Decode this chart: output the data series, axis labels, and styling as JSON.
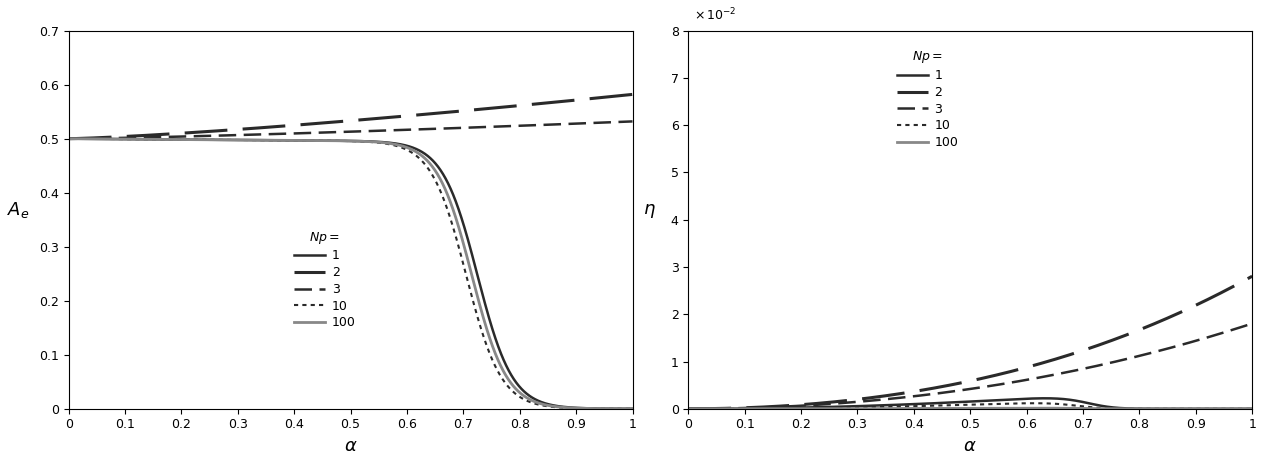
{
  "Np_values": [
    1,
    2,
    3,
    10,
    100
  ],
  "line_styles": [
    {
      "lw": 1.8,
      "color": "#2a2a2a",
      "dashes": [
        6,
        0
      ]
    },
    {
      "lw": 2.2,
      "color": "#2a2a2a",
      "dashes": [
        14,
        5
      ]
    },
    {
      "lw": 1.8,
      "color": "#2a2a2a",
      "dashes": [
        7,
        3
      ]
    },
    {
      "lw": 1.5,
      "color": "#2a2a2a",
      "dashes": [
        2,
        2
      ]
    },
    {
      "lw": 2.0,
      "color": "#888888",
      "dashes": [
        6,
        0
      ]
    }
  ],
  "ylabel_left": "$A_e$",
  "ylabel_right": "$\\eta$",
  "xlabel": "$\\alpha$",
  "ylim_left": [
    0.0,
    0.7
  ],
  "ylim_right": [
    0.0,
    0.08
  ],
  "xlim": [
    0.0,
    1.0
  ],
  "legend_title": "$Np =$",
  "legend_labels": [
    "1",
    "2",
    "3",
    "10",
    "100"
  ],
  "yticks_left": [
    0.0,
    0.1,
    0.2,
    0.3,
    0.4,
    0.5,
    0.6,
    0.7
  ],
  "yticks_right": [
    0.0,
    0.01,
    0.02,
    0.03,
    0.04,
    0.05,
    0.06,
    0.07,
    0.08
  ],
  "xticks": [
    0.0,
    0.1,
    0.2,
    0.3,
    0.4,
    0.5,
    0.6,
    0.7,
    0.8,
    0.9,
    1.0
  ],
  "figsize": [
    12.63,
    4.62
  ],
  "dpi": 100
}
